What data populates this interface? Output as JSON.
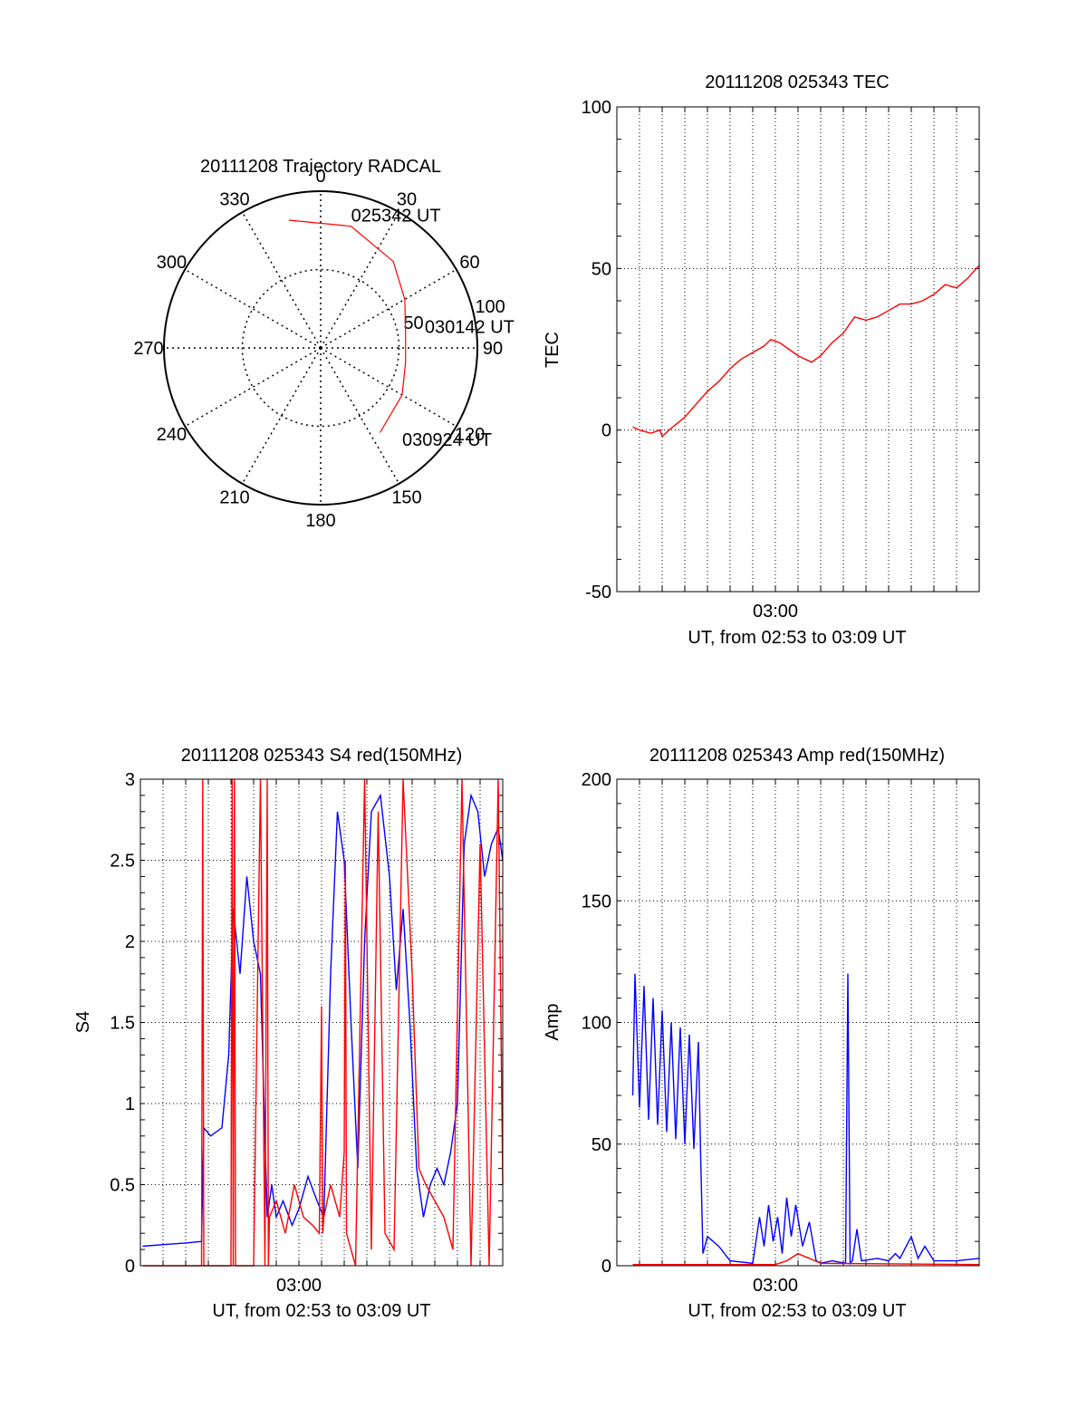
{
  "chart_data": [
    {
      "id": "trajectory",
      "type": "polar",
      "title": "20111208 Trajectory RADCAL",
      "angle_labels": [
        "0",
        "30",
        "60",
        "90",
        "120",
        "150",
        "180",
        "210",
        "240",
        "270",
        "300",
        "330"
      ],
      "radial_labels": [
        "50",
        "100"
      ],
      "radial_range": [
        0,
        100
      ],
      "grid": true,
      "series": [
        {
          "color": "#ff0000",
          "points": [
            [
              346,
              84
            ],
            [
              14,
              80
            ],
            [
              40,
              72
            ],
            [
              60,
              62
            ],
            [
              80,
              55
            ],
            [
              100,
              55
            ],
            [
              120,
              60
            ],
            [
              145,
              66
            ]
          ]
        }
      ],
      "annotations": [
        {
          "text": "025342 UT",
          "az": 3,
          "el": 90
        },
        {
          "text": "030142 UT",
          "az": 70,
          "el": 55
        },
        {
          "text": "030924 UT",
          "az": 145,
          "el": 65
        }
      ]
    },
    {
      "id": "tec",
      "type": "line",
      "title": "20111208 025343 TEC",
      "ylabel": "TEC",
      "xlabel": "UT, from 02:53 to 03:09 UT",
      "x_start": "02:53",
      "x_end": "03:09",
      "xticks": [
        {
          "x": 7,
          "label": "03:00"
        }
      ],
      "yticks": [
        -50,
        0,
        50,
        100
      ],
      "ylim": [
        -50,
        100
      ],
      "grid": true,
      "series": [
        {
          "color": "#ff0000",
          "x": [
            0.7,
            1.0,
            1.5,
            1.9,
            2.0,
            2.3,
            3.0,
            3.5,
            4.0,
            4.5,
            5.0,
            5.5,
            6.0,
            6.5,
            6.8,
            7.2,
            7.6,
            8.0,
            8.3,
            8.6,
            9.0,
            9.5,
            10.0,
            10.5,
            11.0,
            11.5,
            12.0,
            12.5,
            13.0,
            13.5,
            14.0,
            14.5,
            15.0,
            15.5,
            16.0
          ],
          "y": [
            1,
            0,
            -1,
            0,
            -2,
            0,
            4,
            8,
            12,
            15,
            19,
            22,
            24,
            26,
            28,
            27,
            25,
            23,
            22,
            21,
            23,
            27,
            30,
            35,
            34,
            35,
            37,
            39,
            39,
            40,
            42,
            45,
            44,
            47,
            51
          ]
        }
      ]
    },
    {
      "id": "s4",
      "type": "line",
      "title": "20111208 025343 S4 red(150MHz)",
      "ylabel": "S4",
      "xlabel": "UT, from 02:53 to 03:09 UT",
      "x_start": "02:53",
      "x_end": "03:09",
      "xticks": [
        {
          "x": 7,
          "label": "03:00"
        }
      ],
      "yticks": [
        0,
        0.5,
        1,
        1.5,
        2,
        2.5,
        3
      ],
      "ylim": [
        0,
        3
      ],
      "grid": true,
      "series": [
        {
          "color": "#0000ff",
          "x": [
            0.1,
            1.0,
            2.0,
            2.7,
            2.8,
            3.1,
            3.6,
            3.9,
            4.1,
            4.4,
            4.7,
            5.0,
            5.3,
            5.6,
            5.8,
            6.0,
            6.3,
            6.7,
            7.0,
            7.4,
            7.8,
            8.1,
            8.4,
            8.7,
            9.0,
            9.3,
            9.6,
            9.9,
            10.2,
            10.6,
            11.0,
            11.3,
            11.6,
            11.9,
            12.2,
            12.5,
            12.8,
            13.1,
            13.4,
            13.7,
            14.0,
            14.3,
            14.6,
            14.9,
            15.2,
            15.5,
            15.8,
            16.0
          ],
          "y": [
            0.12,
            0.13,
            0.14,
            0.15,
            0.85,
            0.8,
            0.85,
            1.3,
            2.2,
            1.8,
            2.4,
            2.0,
            1.8,
            0.3,
            0.5,
            0.3,
            0.4,
            0.25,
            0.35,
            0.55,
            0.4,
            0.3,
            1.8,
            2.8,
            2.5,
            1.5,
            0.6,
            2.0,
            2.8,
            2.9,
            2.4,
            1.7,
            2.2,
            1.5,
            0.6,
            0.3,
            0.5,
            0.6,
            0.5,
            0.7,
            1.0,
            2.6,
            2.9,
            2.8,
            2.4,
            2.6,
            2.7,
            2.5
          ]
        },
        {
          "color": "#ff0000",
          "x": [
            0.1,
            2.6,
            2.7,
            2.75,
            2.8,
            4.0,
            4.05,
            4.1,
            4.15,
            4.2,
            5.0,
            5.3,
            5.5,
            5.6,
            5.65,
            5.7,
            6.0,
            6.4,
            6.8,
            7.2,
            7.6,
            7.9,
            8.0,
            8.05,
            8.1,
            8.4,
            8.8,
            9.0,
            9.05,
            9.1,
            9.5,
            9.9,
            10.2,
            10.5,
            10.8,
            11.2,
            11.6,
            12.0,
            12.3,
            12.6,
            13.0,
            13.4,
            13.8,
            14.2,
            14.6,
            15.0,
            15.4,
            15.8,
            16.0
          ],
          "y": [
            0,
            0,
            0,
            3,
            0,
            0,
            3,
            0,
            3,
            0,
            0,
            3,
            0,
            3,
            0,
            0.3,
            0.4,
            0.2,
            0.5,
            0.3,
            0.25,
            0.2,
            1.6,
            0.2,
            0.3,
            0.5,
            0.3,
            0.7,
            2.5,
            0.2,
            0,
            3,
            0.1,
            2.8,
            0.2,
            0.1,
            3,
            1.8,
            0.6,
            0.5,
            0.4,
            0.3,
            0.1,
            3,
            0,
            2.6,
            0,
            3,
            0.5
          ]
        }
      ]
    },
    {
      "id": "amp",
      "type": "line",
      "title": "20111208 025343 Amp red(150MHz)",
      "ylabel": "Amp",
      "xlabel": "UT, from 02:53 to 03:09 UT",
      "x_start": "02:53",
      "x_end": "03:09",
      "xticks": [
        {
          "x": 7,
          "label": "03:00"
        }
      ],
      "yticks": [
        0,
        50,
        100,
        150,
        200
      ],
      "ylim": [
        0,
        200
      ],
      "grid": true,
      "series": [
        {
          "color": "#0000ff",
          "x": [
            0.7,
            0.8,
            1.0,
            1.2,
            1.4,
            1.6,
            1.8,
            2.0,
            2.2,
            2.4,
            2.6,
            2.8,
            3.0,
            3.2,
            3.4,
            3.6,
            3.7,
            3.8,
            4.0,
            4.5,
            5.0,
            6.0,
            6.3,
            6.5,
            6.7,
            6.9,
            7.1,
            7.3,
            7.5,
            7.7,
            7.9,
            8.2,
            8.5,
            8.8,
            9.0,
            9.5,
            10.1,
            10.2,
            10.3,
            10.4,
            10.6,
            10.8,
            11.5,
            12.0,
            12.3,
            12.5,
            13.0,
            13.3,
            13.6,
            14.0,
            15.0,
            16.0
          ],
          "y": [
            70,
            120,
            65,
            115,
            60,
            110,
            58,
            105,
            55,
            100,
            52,
            98,
            50,
            95,
            48,
            92,
            45,
            5,
            12,
            8,
            2,
            1,
            20,
            8,
            25,
            10,
            20,
            5,
            28,
            12,
            25,
            8,
            18,
            2,
            1,
            2,
            1,
            120,
            1,
            2,
            15,
            2,
            3,
            2,
            5,
            3,
            12,
            3,
            8,
            2,
            2,
            3
          ]
        },
        {
          "color": "#ff0000",
          "x": [
            0.7,
            3.0,
            6.0,
            7.0,
            7.5,
            8.0,
            9.0,
            16.0
          ],
          "y": [
            0.5,
            0.5,
            0.5,
            0.5,
            2,
            5,
            1,
            0.5
          ]
        }
      ]
    }
  ]
}
